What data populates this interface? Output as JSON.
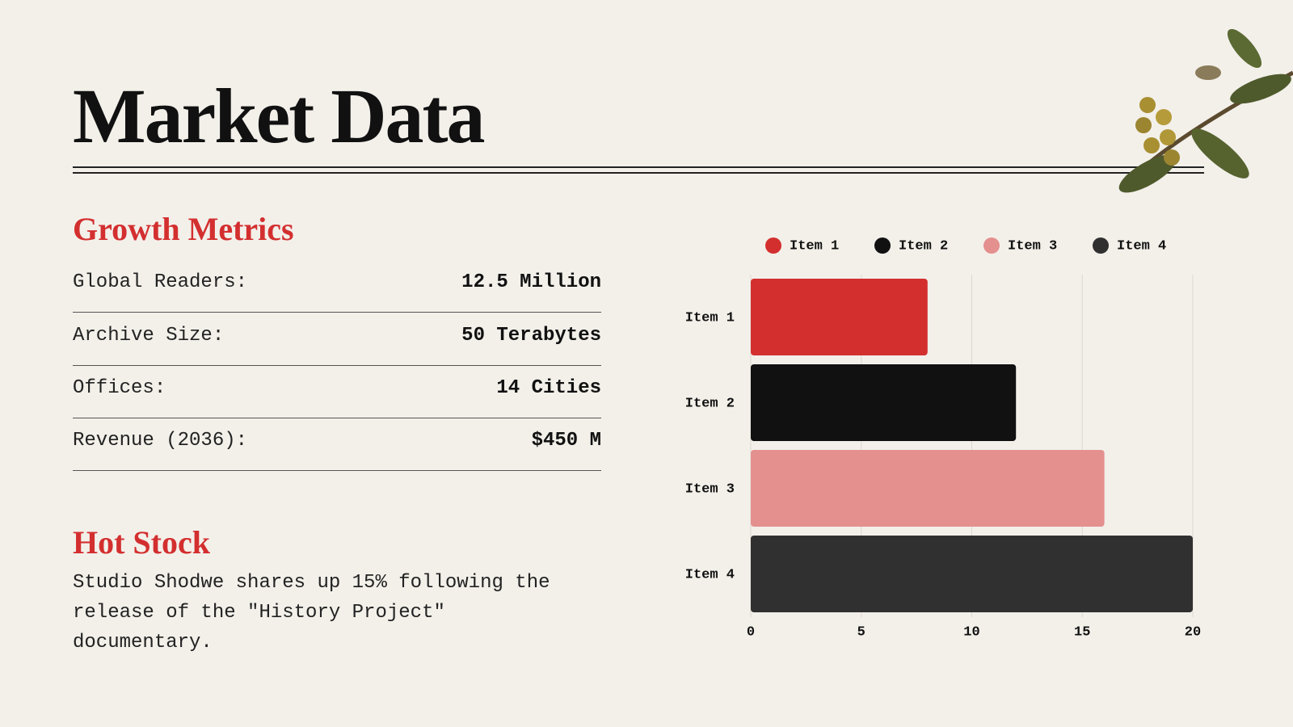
{
  "header": {
    "title": "Market Data"
  },
  "metrics": {
    "heading": "Growth Metrics",
    "rows": [
      {
        "label": "Global Readers:",
        "value": "12.5 Million"
      },
      {
        "label": "Archive Size:",
        "value": "50 Terabytes"
      },
      {
        "label": "Offices:",
        "value": "14 Cities"
      },
      {
        "label": "Revenue (2036):",
        "value": "$450 M"
      }
    ]
  },
  "hot_stock": {
    "heading": "Hot Stock",
    "text": "Studio Shodwe shares up 15% following the release of the \"History Project\" documentary."
  },
  "chart_data": {
    "type": "bar",
    "orientation": "horizontal",
    "categories": [
      "Item 1",
      "Item 2",
      "Item 3",
      "Item 4"
    ],
    "values": [
      8,
      12,
      16,
      20
    ],
    "colors": [
      "#d32f2f",
      "#111111",
      "#e4908f",
      "#303030"
    ],
    "xlim": [
      0,
      20
    ],
    "xticks": [
      0,
      5,
      10,
      15,
      20
    ],
    "grid": true,
    "legend": "top"
  }
}
